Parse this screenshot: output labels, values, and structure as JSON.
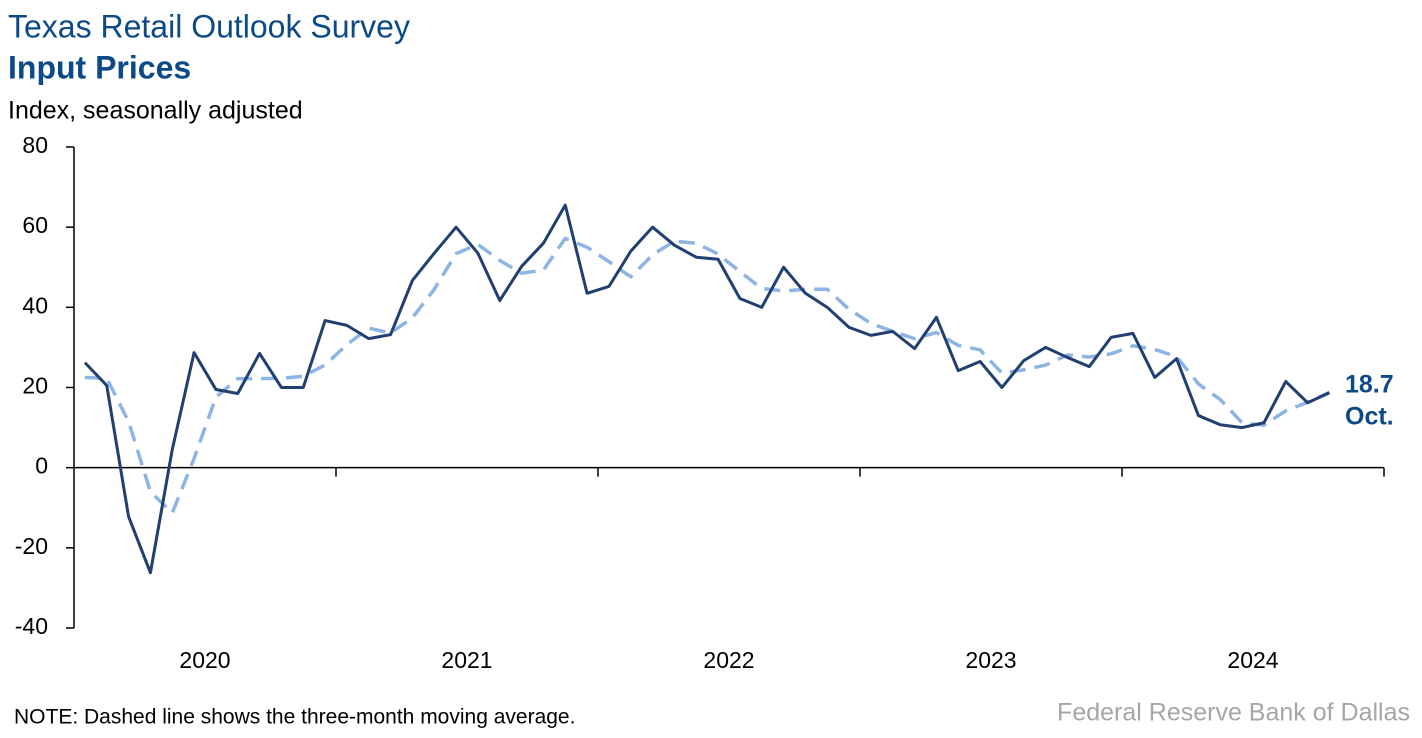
{
  "chart_data": {
    "type": "line",
    "title": "Texas Retail Outlook Survey",
    "subtitle": "Input Prices",
    "y_label": "Index, seasonally adjusted",
    "note": "NOTE: Dashed line shows the three-month moving average.",
    "source": "Federal Reserve Bank of Dallas",
    "end_label": "Oct.",
    "categories": [
      null,
      null,
      null,
      null,
      null,
      "2020",
      null,
      null,
      null,
      null,
      null,
      null,
      null,
      null,
      null,
      null,
      null,
      "2021",
      null,
      null,
      null,
      null,
      null,
      null,
      null,
      null,
      null,
      null,
      null,
      "2022",
      null,
      null,
      null,
      null,
      null,
      null,
      null,
      null,
      null,
      null,
      null,
      "2023",
      null,
      null,
      null,
      null,
      null,
      null,
      null,
      null,
      null,
      null,
      null,
      "2024",
      null,
      null,
      null,
      null
    ],
    "series": [
      {
        "name": "Input Prices",
        "color": "#213f70",
        "dashed": false,
        "values": [
          26.2,
          20.5,
          -12.2,
          -26.2,
          4.5,
          28.7,
          19.5,
          18.5,
          28.5,
          20,
          20,
          36.7,
          35.5,
          32.2,
          33.2,
          46.7,
          53.5,
          60,
          53.5,
          41.7,
          50.2,
          56,
          65.5,
          43.5,
          45.2,
          54,
          60,
          55.5,
          52.5,
          52,
          42.2,
          40,
          50,
          43.5,
          40,
          35,
          33,
          34,
          29.7,
          37.5,
          24.2,
          26.5,
          20,
          26.7,
          30,
          27.5,
          25.2,
          32.5,
          33.5,
          22.5,
          27.2,
          13,
          10.7,
          10,
          11.2,
          21.5,
          16.2,
          18.7
        ]
      },
      {
        "name": "Three-month moving average",
        "color": "#8eb4e3",
        "dashed": true,
        "values": [
          22.5,
          22.3,
          11.5,
          -6,
          -11.3,
          2.3,
          17.6,
          22.2,
          22.2,
          22.3,
          22.8,
          25.6,
          30.7,
          34.8,
          33.6,
          37.4,
          44.5,
          53.4,
          55.7,
          51.7,
          48.5,
          49.3,
          57.2,
          55,
          51.4,
          47.6,
          53.1,
          56.5,
          56,
          53.3,
          48.9,
          44.7,
          44.1,
          44.5,
          44.5,
          39.5,
          36,
          34,
          32.2,
          33.7,
          30.5,
          29.4,
          23.6,
          24.4,
          25.6,
          28.1,
          27.6,
          28.4,
          30.4,
          29.5,
          27.7,
          20.9,
          17,
          11.2,
          10.6,
          14.2,
          16.3,
          18.8
        ]
      }
    ],
    "ylim": [
      -40,
      80
    ],
    "yticks": [
      -40,
      -20,
      0,
      20,
      40,
      60,
      80
    ]
  }
}
